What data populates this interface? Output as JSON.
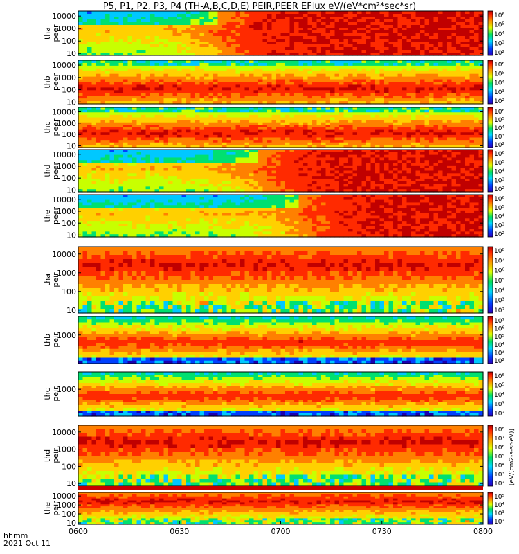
{
  "title": "P5, P1, P2, P3, P4 (TH-A,B,C,D,E) PEIR,PEER EFlux eV/(eV*cm²*sec*sr)",
  "footer": {
    "time_label": "hhmm",
    "date_label": "2021 Oct 11"
  },
  "colorbar_unit": "[eV/(cm2-s-sr-eV)]",
  "colorbar_ticks": [
    "10⁸",
    "10⁷",
    "10⁶",
    "10⁵",
    "10⁴",
    "10³",
    "10²"
  ],
  "colors": {
    "background": "#ffffff",
    "saturation_band": "#c80000"
  },
  "chart_data": {
    "type": "heatmap",
    "x_axis": {
      "ticks": [
        "0600",
        "0630",
        "0700",
        "0730",
        "0800"
      ],
      "range": [
        "06:00",
        "08:00"
      ]
    },
    "y_axis": {
      "scale": "log",
      "units": "eV"
    },
    "colormap": "rainbow",
    "panels": [
      {
        "probe": "tha",
        "product": "peer",
        "label_lines": [
          "tha",
          "peer"
        ],
        "yticks": [
          "10000",
          "1000",
          "100",
          "10"
        ],
        "ylim": [
          7,
          25000
        ]
      },
      {
        "probe": "thb",
        "product": "peer",
        "label_lines": [
          "thb",
          "peer"
        ],
        "yticks": [
          "10000",
          "1000",
          "100",
          "10"
        ],
        "ylim": [
          7,
          25000
        ]
      },
      {
        "probe": "thc",
        "product": "peer",
        "label_lines": [
          "thc",
          "peer"
        ],
        "yticks": [
          "10000",
          "1000",
          "100",
          "10"
        ],
        "ylim": [
          7,
          25000
        ]
      },
      {
        "probe": "thd",
        "product": "peer",
        "label_lines": [
          "thd",
          "peer"
        ],
        "yticks": [
          "10000",
          "1000",
          "100",
          "10"
        ],
        "ylim": [
          7,
          25000
        ]
      },
      {
        "probe": "the",
        "product": "peer",
        "label_lines": [
          "the",
          "peer"
        ],
        "yticks": [
          "10000",
          "1000",
          "100",
          "10"
        ],
        "ylim": [
          7,
          25000
        ]
      },
      {
        "probe": "tha",
        "product": "peir",
        "label_lines": [
          "tha",
          "peir"
        ],
        "yticks": [
          "10000",
          "1000",
          "100",
          "10"
        ],
        "ylim": [
          7,
          25000
        ]
      },
      {
        "probe": "thb",
        "product": "peir",
        "label_lines": [
          "thb",
          "peir"
        ],
        "yticks": [
          "1000"
        ],
        "ylim": [
          7,
          25000
        ]
      },
      {
        "probe": "thc",
        "product": "peir",
        "label_lines": [
          "thc",
          "peir"
        ],
        "yticks": [
          "1000"
        ],
        "ylim": [
          7,
          25000
        ]
      },
      {
        "probe": "thd",
        "product": "peir",
        "label_lines": [
          "thd",
          "peir"
        ],
        "yticks": [
          "10000",
          "1000",
          "100",
          "10"
        ],
        "ylim": [
          7,
          25000
        ]
      },
      {
        "probe": "the",
        "product": "peir",
        "label_lines": [
          "the",
          "peir"
        ],
        "yticks": [
          "10000",
          "1000",
          "100",
          "10"
        ],
        "ylim": [
          7,
          25000
        ]
      }
    ]
  }
}
